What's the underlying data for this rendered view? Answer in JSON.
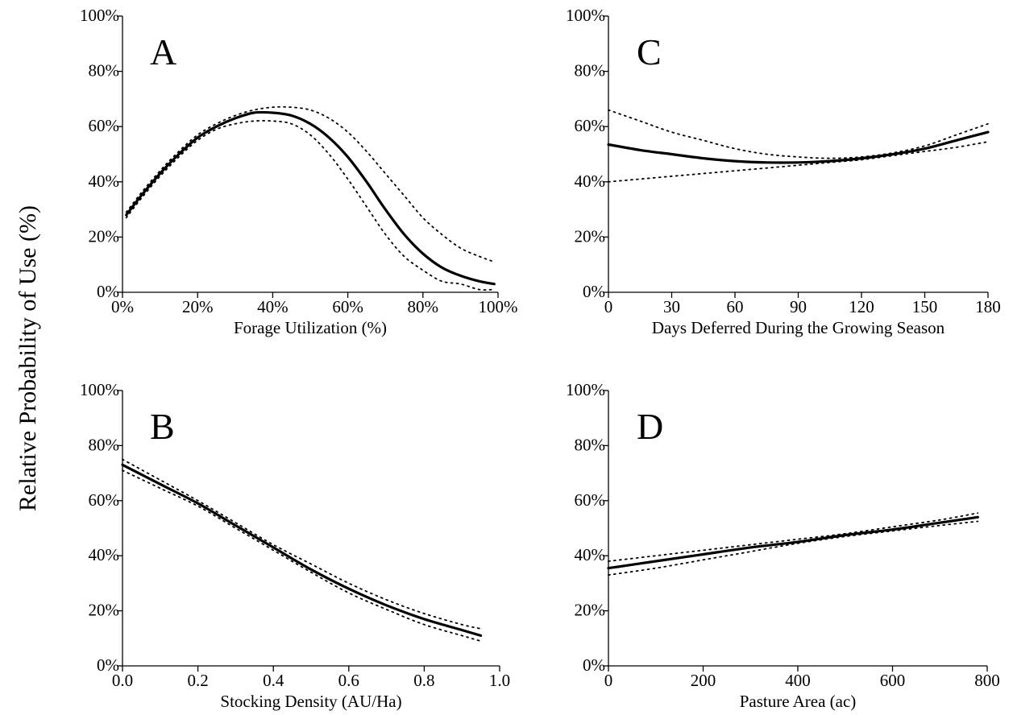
{
  "figure": {
    "y_title": "Relative Probability of Use (%)"
  },
  "chart_data": [
    {
      "id": "A",
      "type": "line",
      "panel_label": "A",
      "xlabel": "Forage Utilization (%)",
      "ylabel": "Relative Probability of Use (%)",
      "xlim": [
        0,
        100
      ],
      "ylim": [
        0,
        100
      ],
      "x_ticks": [
        0,
        20,
        40,
        60,
        80,
        100
      ],
      "x_tick_labels": [
        "0%",
        "20%",
        "40%",
        "60%",
        "80%",
        "100%"
      ],
      "y_ticks": [
        0,
        20,
        40,
        60,
        80,
        100
      ],
      "y_tick_labels": [
        "0%",
        "20%",
        "40%",
        "60%",
        "80%",
        "100%"
      ],
      "grid": false,
      "series": [
        {
          "role": "fit",
          "x": [
            1,
            5,
            10,
            15,
            20,
            25,
            30,
            35,
            40,
            45,
            50,
            55,
            60,
            65,
            70,
            75,
            80,
            85,
            90,
            95,
            99
          ],
          "y": [
            28,
            35,
            43,
            50,
            56,
            60,
            63,
            65,
            65,
            64,
            61,
            56,
            49,
            40,
            30,
            21,
            14,
            9,
            6,
            4,
            3
          ]
        },
        {
          "role": "upper_ci",
          "x": [
            1,
            5,
            10,
            15,
            20,
            25,
            30,
            35,
            40,
            45,
            50,
            55,
            60,
            65,
            70,
            75,
            80,
            85,
            90,
            95,
            99
          ],
          "y": [
            29,
            36,
            44,
            51,
            57,
            61,
            64,
            66,
            67,
            67,
            66,
            63,
            58,
            51,
            43,
            35,
            27,
            21,
            16,
            13,
            11
          ]
        },
        {
          "role": "lower_ci",
          "x": [
            1,
            5,
            10,
            15,
            20,
            25,
            30,
            35,
            40,
            45,
            50,
            55,
            60,
            65,
            70,
            75,
            80,
            85,
            90,
            95,
            99
          ],
          "y": [
            27,
            34,
            42,
            49,
            55,
            59,
            61,
            62,
            62,
            61,
            57,
            50,
            41,
            31,
            21,
            13,
            8,
            4,
            3,
            1,
            1
          ]
        }
      ]
    },
    {
      "id": "C",
      "type": "line",
      "panel_label": "C",
      "xlabel": "Days Deferred During the Growing Season",
      "ylabel": "Relative Probability of Use (%)",
      "xlim": [
        0,
        180
      ],
      "ylim": [
        0,
        100
      ],
      "x_ticks": [
        0,
        30,
        60,
        90,
        120,
        150,
        180
      ],
      "x_tick_labels": [
        "0",
        "30",
        "60",
        "90",
        "120",
        "150",
        "180"
      ],
      "y_ticks": [
        0,
        20,
        40,
        60,
        80,
        100
      ],
      "y_tick_labels": [
        "0%",
        "20%",
        "40%",
        "60%",
        "80%",
        "100%"
      ],
      "grid": false,
      "series": [
        {
          "role": "fit",
          "x": [
            0,
            15,
            30,
            45,
            60,
            75,
            90,
            105,
            120,
            135,
            150,
            165,
            180
          ],
          "y": [
            53.5,
            51.5,
            50,
            48.5,
            47.5,
            47,
            47,
            47.5,
            48.5,
            50,
            52,
            55,
            58
          ]
        },
        {
          "role": "upper_ci",
          "x": [
            0,
            15,
            30,
            45,
            60,
            75,
            90,
            105,
            120,
            135,
            150,
            165,
            180
          ],
          "y": [
            66,
            62,
            58,
            55,
            52,
            50,
            49,
            48.5,
            49,
            50.5,
            53,
            57,
            61
          ]
        },
        {
          "role": "lower_ci",
          "x": [
            0,
            15,
            30,
            45,
            60,
            75,
            90,
            105,
            120,
            135,
            150,
            165,
            180
          ],
          "y": [
            40,
            41,
            42,
            43,
            44,
            45,
            46,
            47,
            48,
            49.5,
            51,
            52.5,
            54.5
          ]
        }
      ]
    },
    {
      "id": "B",
      "type": "line",
      "panel_label": "B",
      "xlabel": "Stocking Density (AU/Ha)",
      "ylabel": "Relative Probability of Use (%)",
      "xlim": [
        0,
        1
      ],
      "ylim": [
        0,
        100
      ],
      "x_ticks": [
        0,
        0.2,
        0.4,
        0.6,
        0.8,
        1.0
      ],
      "x_tick_labels": [
        "0.0",
        "0.2",
        "0.4",
        "0.6",
        "0.8",
        "1.0"
      ],
      "y_ticks": [
        0,
        20,
        40,
        60,
        80,
        100
      ],
      "y_tick_labels": [
        "0%",
        "20%",
        "40%",
        "60%",
        "80%",
        "100%"
      ],
      "grid": false,
      "series": [
        {
          "role": "fit",
          "x": [
            0,
            0.1,
            0.2,
            0.3,
            0.4,
            0.5,
            0.6,
            0.7,
            0.8,
            0.9,
            0.95
          ],
          "y": [
            73,
            66,
            59,
            51,
            43,
            35,
            28,
            22,
            17,
            13,
            11
          ]
        },
        {
          "role": "upper_ci",
          "x": [
            0,
            0.1,
            0.2,
            0.3,
            0.4,
            0.5,
            0.6,
            0.7,
            0.8,
            0.9,
            0.95
          ],
          "y": [
            75,
            67.5,
            60,
            52,
            44,
            37,
            30,
            24,
            19,
            15,
            13.5
          ]
        },
        {
          "role": "lower_ci",
          "x": [
            0,
            0.1,
            0.2,
            0.3,
            0.4,
            0.5,
            0.6,
            0.7,
            0.8,
            0.9,
            0.95
          ],
          "y": [
            71,
            64.5,
            58,
            50,
            42,
            34,
            26.5,
            20.5,
            15,
            11,
            9
          ]
        }
      ]
    },
    {
      "id": "D",
      "type": "line",
      "panel_label": "D",
      "xlabel": "Pasture Area (ac)",
      "ylabel": "Relative Probability of Use (%)",
      "xlim": [
        0,
        800
      ],
      "ylim": [
        0,
        100
      ],
      "x_ticks": [
        0,
        200,
        400,
        600,
        800
      ],
      "x_tick_labels": [
        "0",
        "200",
        "400",
        "600",
        "800"
      ],
      "y_ticks": [
        0,
        20,
        40,
        60,
        80,
        100
      ],
      "y_tick_labels": [
        "0%",
        "20%",
        "40%",
        "60%",
        "80%",
        "100%"
      ],
      "grid": false,
      "series": [
        {
          "role": "fit",
          "x": [
            0,
            100,
            200,
            300,
            400,
            500,
            600,
            700,
            780
          ],
          "y": [
            35.5,
            38,
            40.5,
            43,
            45,
            47.5,
            49.5,
            52,
            54
          ]
        },
        {
          "role": "upper_ci",
          "x": [
            0,
            100,
            200,
            300,
            400,
            500,
            600,
            700,
            780
          ],
          "y": [
            38,
            40,
            42,
            44,
            46,
            48,
            50.5,
            53,
            55.5
          ]
        },
        {
          "role": "lower_ci",
          "x": [
            0,
            100,
            200,
            300,
            400,
            500,
            600,
            700,
            780
          ],
          "y": [
            33,
            35.5,
            38.5,
            41.5,
            44.5,
            47,
            49,
            51,
            52.5
          ]
        }
      ]
    }
  ]
}
